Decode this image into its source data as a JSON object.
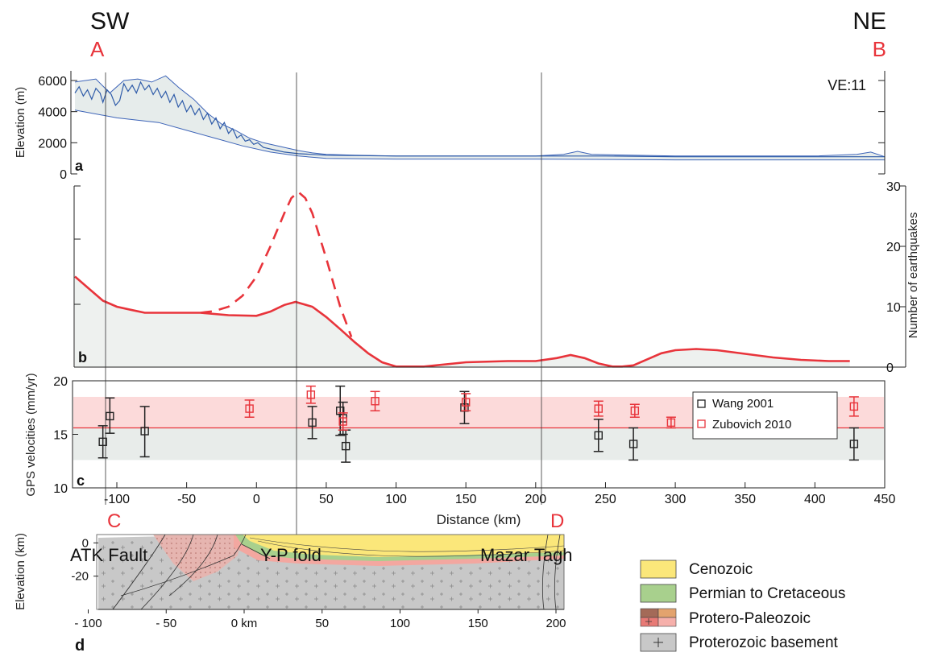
{
  "labels": {
    "sw": "SW",
    "ne": "NE",
    "a": "A",
    "b": "B",
    "c": "C",
    "d": "D",
    "ve": "VE:11",
    "panel_a": "a",
    "panel_b": "b",
    "panel_c": "c",
    "panel_d": "d"
  },
  "chart_data": [
    {
      "panel": "a",
      "type": "area",
      "ylabel": "Elevation (m)",
      "ylim": [
        0,
        6800
      ],
      "yticks": [
        0,
        2000,
        4000,
        6000
      ],
      "xlim": [
        -130,
        450
      ],
      "colors": {
        "line": "#3d64b8",
        "fill": "#e6eceb"
      },
      "envelope_max": {
        "x": [
          -130,
          -115,
          -105,
          -95,
          -85,
          -75,
          -65,
          -55,
          -45,
          -35,
          -25,
          -15,
          -5,
          5,
          20,
          30,
          40,
          50,
          70,
          100,
          150,
          200,
          220,
          230,
          240,
          300,
          350,
          400,
          430,
          440,
          450
        ],
        "y": [
          5900,
          6100,
          5200,
          6000,
          6100,
          5900,
          6300,
          5500,
          4800,
          3900,
          3200,
          2800,
          2300,
          2000,
          1700,
          1500,
          1350,
          1250,
          1200,
          1150,
          1150,
          1150,
          1250,
          1450,
          1250,
          1150,
          1150,
          1150,
          1250,
          1400,
          1100
        ]
      },
      "envelope_min": {
        "x": [
          -130,
          -100,
          -70,
          -50,
          -30,
          -10,
          10,
          30,
          50,
          100,
          200,
          300,
          400,
          450
        ],
        "y": [
          4100,
          3600,
          3300,
          2800,
          2300,
          1800,
          1400,
          1150,
          1000,
          950,
          950,
          900,
          900,
          900
        ]
      },
      "profile": {
        "x": [
          -130,
          -127,
          -124,
          -121,
          -118,
          -115,
          -112,
          -110,
          -107,
          -104,
          -101,
          -98,
          -95,
          -92,
          -89,
          -86,
          -83,
          -80,
          -77,
          -74,
          -71,
          -68,
          -65,
          -62,
          -59,
          -56,
          -53,
          -50,
          -47,
          -44,
          -41,
          -38,
          -35,
          -32,
          -29,
          -26,
          -23,
          -20,
          -17,
          -14,
          -11,
          -8,
          -5,
          -2,
          1,
          5,
          10,
          15,
          20,
          25,
          30,
          40,
          50,
          100,
          150,
          200,
          250,
          300,
          350,
          400,
          450
        ],
        "y": [
          5200,
          5600,
          5000,
          5400,
          4800,
          5500,
          5200,
          4600,
          5400,
          5100,
          4400,
          4700,
          5800,
          5300,
          5700,
          5200,
          5900,
          5400,
          5700,
          5100,
          5500,
          4900,
          5300,
          4600,
          5100,
          4300,
          4700,
          4000,
          4400,
          3800,
          4200,
          3500,
          3900,
          3200,
          3600,
          2900,
          3300,
          2600,
          2900,
          2300,
          2500,
          2100,
          2200,
          1900,
          2000,
          1700,
          1600,
          1500,
          1400,
          1350,
          1300,
          1250,
          1200,
          1150,
          1150,
          1150,
          1150,
          1100,
          1100,
          1100,
          1100
        ]
      }
    },
    {
      "panel": "b",
      "type": "line",
      "ylabel": "Number of earthquakes",
      "ylim": [
        0,
        30
      ],
      "yticks": [
        0,
        10,
        20,
        30
      ],
      "xlim": [
        -130,
        450
      ],
      "colors": {
        "line": "#e8343b",
        "fill": "#eef1ef"
      },
      "series": [
        {
          "style": "solid",
          "x": [
            -130,
            -120,
            -110,
            -100,
            -90,
            -80,
            -60,
            -40,
            -20,
            0,
            10,
            20,
            28,
            40,
            50,
            60,
            70,
            80,
            90,
            100,
            120,
            150,
            180,
            200,
            215,
            225,
            235,
            245,
            255,
            262,
            270,
            280,
            290,
            300,
            315,
            330,
            350,
            370,
            390,
            410,
            425
          ],
          "y": [
            15,
            13,
            11,
            10,
            9.5,
            9,
            9,
            9,
            8.6,
            8.5,
            9.2,
            10.3,
            10.8,
            10,
            8.3,
            6.3,
            4.2,
            2.3,
            0.8,
            0.1,
            0.1,
            0.8,
            1,
            1,
            1.5,
            2,
            1.5,
            0.6,
            0.1,
            0.1,
            0.3,
            1.3,
            2.3,
            2.8,
            3,
            2.8,
            2.2,
            1.6,
            1.2,
            1,
            1
          ]
        },
        {
          "style": "dashed",
          "x": [
            -40,
            -30,
            -20,
            -10,
            0,
            10,
            20,
            25,
            30,
            35,
            40,
            50,
            60,
            68
          ],
          "y": [
            9,
            9.3,
            10,
            11.8,
            15,
            20,
            25.5,
            28,
            29,
            28,
            25.5,
            18,
            10,
            5
          ]
        }
      ]
    },
    {
      "panel": "c",
      "type": "scatter",
      "ylabel": "GPS velocities (mm/yr)",
      "xlabel": "Distance (km)",
      "ylim": [
        10,
        20
      ],
      "yticks": [
        10,
        15,
        20
      ],
      "xlim": [
        -130,
        450
      ],
      "xticks": [
        -100,
        -50,
        0,
        50,
        100,
        150,
        200,
        250,
        300,
        350,
        400,
        450
      ],
      "legend": "top-right",
      "bands": [
        {
          "series": "Zubovich 2010",
          "y": [
            15.6,
            18.5
          ],
          "color": "#fcdada"
        },
        {
          "series": "Wang 2001",
          "y": [
            12.6,
            15.6
          ],
          "color": "#e8ecea"
        }
      ],
      "mean_line": 15.6,
      "series": [
        {
          "name": "Wang 2001",
          "color": "#222222",
          "points": [
            {
              "x": -110,
              "y": 14.3,
              "lo": 12.8,
              "hi": 15.8
            },
            {
              "x": -105,
              "y": 16.7,
              "lo": 15.1,
              "hi": 18.4
            },
            {
              "x": -80,
              "y": 15.3,
              "lo": 12.9,
              "hi": 17.6
            },
            {
              "x": 40,
              "y": 16.1,
              "lo": 14.6,
              "hi": 17.6
            },
            {
              "x": 60,
              "y": 17.2,
              "lo": 14.9,
              "hi": 19.5
            },
            {
              "x": 62,
              "y": 16.5,
              "lo": 15.0,
              "hi": 18.0
            },
            {
              "x": 64,
              "y": 13.9,
              "lo": 12.4,
              "hi": 15.4
            },
            {
              "x": 149,
              "y": 17.5,
              "lo": 16.0,
              "hi": 19.0
            },
            {
              "x": 245,
              "y": 14.9,
              "lo": 13.4,
              "hi": 16.4
            },
            {
              "x": 270,
              "y": 14.1,
              "lo": 12.6,
              "hi": 15.6
            },
            {
              "x": 428,
              "y": 14.1,
              "lo": 12.6,
              "hi": 15.6
            }
          ]
        },
        {
          "name": "Zubovich 2010",
          "color": "#e8343b",
          "points": [
            {
              "x": -5,
              "y": 17.4,
              "lo": 16.6,
              "hi": 18.2
            },
            {
              "x": 39,
              "y": 18.7,
              "lo": 17.9,
              "hi": 19.5
            },
            {
              "x": 62,
              "y": 16.2,
              "lo": 15.4,
              "hi": 17.0
            },
            {
              "x": 85,
              "y": 18.1,
              "lo": 17.2,
              "hi": 19.0
            },
            {
              "x": 150,
              "y": 18.0,
              "lo": 17.2,
              "hi": 18.8
            },
            {
              "x": 245,
              "y": 17.4,
              "lo": 16.7,
              "hi": 18.1
            },
            {
              "x": 271,
              "y": 17.2,
              "lo": 16.6,
              "hi": 17.8
            },
            {
              "x": 297,
              "y": 16.1,
              "lo": 15.6,
              "hi": 16.6
            },
            {
              "x": 428,
              "y": 17.6,
              "lo": 16.7,
              "hi": 18.5
            }
          ]
        }
      ]
    },
    {
      "panel": "d",
      "type": "other",
      "ylabel": "Elevation (km)",
      "ylim": [
        -40,
        5
      ],
      "yticks": [
        0,
        -20
      ],
      "xlim": [
        -120,
        220
      ],
      "xticks": [
        -100,
        -50,
        0,
        50,
        100,
        150,
        200
      ],
      "xticklabels": [
        "- 100",
        "- 50",
        "0 km",
        "50",
        "100",
        "150",
        "200"
      ],
      "annotations": [
        "ATK Fault",
        "Y-P fold",
        "Mazar Tagh"
      ],
      "legend": "right",
      "units": [
        {
          "name": "Cenozoic",
          "color": "#fbe77a"
        },
        {
          "name": "Permian to Cretaceous",
          "color": "#a8d08d"
        },
        {
          "name": "Protero-Paleozoic",
          "color": "#f3a7a0"
        },
        {
          "name": "Proterozoic basement",
          "color": "#c8c8c8"
        }
      ]
    }
  ]
}
